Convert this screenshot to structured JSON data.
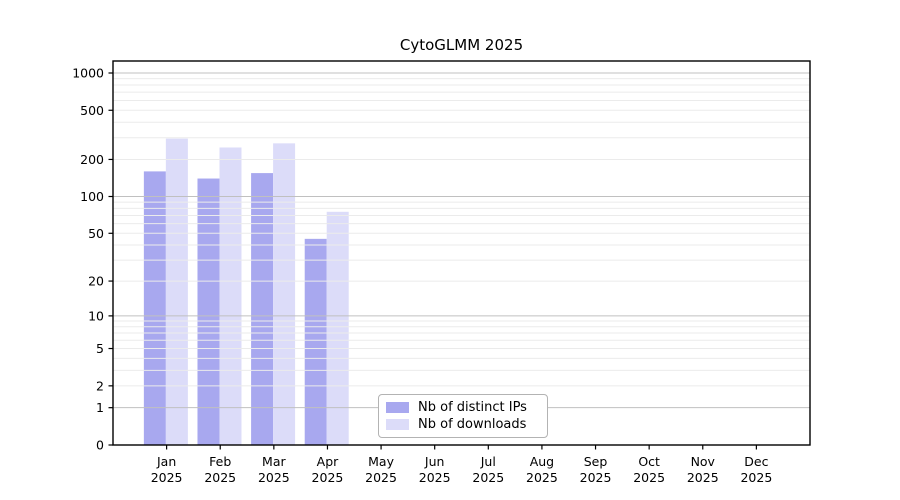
{
  "title": "CytoGLMM 2025",
  "chart_data": {
    "type": "bar",
    "title": "CytoGLMM 2025",
    "categories": [
      "Jan",
      "Feb",
      "Mar",
      "Apr",
      "May",
      "Jun",
      "Jul",
      "Aug",
      "Sep",
      "Oct",
      "Nov",
      "Dec"
    ],
    "x_tick_year": "2025",
    "series": [
      {
        "name": "Nb of distinct IPs",
        "color": "#a8a8ef",
        "values": [
          160,
          140,
          155,
          45,
          0,
          0,
          0,
          0,
          0,
          0,
          0,
          0
        ]
      },
      {
        "name": "Nb of downloads",
        "color": "#dcdcf9",
        "values": [
          295,
          250,
          270,
          75,
          0,
          0,
          0,
          0,
          0,
          0,
          0,
          0
        ]
      }
    ],
    "yscale": "log1p",
    "y_ticks": [
      0,
      1,
      2,
      5,
      10,
      20,
      50,
      100,
      200,
      500,
      1000
    ],
    "ylim": [
      0,
      1250
    ],
    "xlabel": "",
    "ylabel": "",
    "grid": {
      "on": true,
      "major_color": "#c0c0c0",
      "minor_color": "#ebebeb",
      "major_at": [
        1,
        10,
        100,
        1000
      ]
    },
    "legend": {
      "position": "lower-center",
      "entries": [
        "Nb of distinct IPs",
        "Nb of downloads"
      ]
    }
  }
}
